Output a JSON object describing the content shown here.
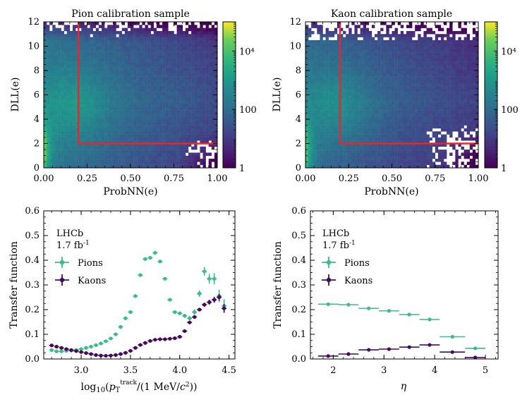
{
  "chart_data": [
    {
      "type": "heatmap",
      "id": "pion-2d",
      "title": "Pion calibration sample",
      "xlabel": "ProbNN(e)",
      "ylabel": "DLL(e)",
      "xlim": [
        0.0,
        1.0
      ],
      "ylim": [
        0,
        12
      ],
      "xticks": [
        0.0,
        0.25,
        0.5,
        0.75,
        1.0
      ],
      "xtick_labels": [
        "0.00",
        "0.25",
        "0.50",
        "0.75",
        "1.00"
      ],
      "yticks": [
        0,
        2,
        4,
        6,
        8,
        10,
        12
      ],
      "ytick_labels": [
        "0",
        "2",
        "4",
        "6",
        "8",
        "10",
        "12"
      ],
      "colorbar": {
        "scale": "log",
        "ticks": [
          1,
          100,
          10000
        ],
        "tick_labels": [
          "1",
          "100",
          "10⁴"
        ],
        "colormap": "viridis",
        "range": [
          1,
          100000
        ]
      },
      "selection_cut": {
        "probnn_e_min": 0.2,
        "dll_e_min": 2
      },
      "cut_color": "#e8262b"
    },
    {
      "type": "heatmap",
      "id": "kaon-2d",
      "title": "Kaon calibration sample",
      "xlabel": "ProbNN(e)",
      "ylabel": "DLL(e)",
      "xlim": [
        0.0,
        1.0
      ],
      "ylim": [
        0,
        12
      ],
      "xticks": [
        0.0,
        0.25,
        0.5,
        0.75,
        1.0
      ],
      "xtick_labels": [
        "0.00",
        "0.25",
        "0.50",
        "0.75",
        "1.00"
      ],
      "yticks": [
        0,
        2,
        4,
        6,
        8,
        10,
        12
      ],
      "ytick_labels": [
        "0",
        "2",
        "4",
        "6",
        "8",
        "10",
        "12"
      ],
      "colorbar": {
        "scale": "log",
        "ticks": [
          1,
          100,
          10000
        ],
        "tick_labels": [
          "1",
          "100",
          "10⁴"
        ],
        "colormap": "viridis",
        "range": [
          1,
          100000
        ]
      },
      "selection_cut": {
        "probnn_e_min": 0.2,
        "dll_e_min": 2
      },
      "cut_color": "#e8262b"
    },
    {
      "type": "scatter",
      "id": "tf-pt",
      "xlabel": "log₁₀(p_T^track/(1 MeV/c²))",
      "ylabel": "Transfer function",
      "xlim": [
        2.62,
        4.56
      ],
      "ylim": [
        0.0,
        0.6
      ],
      "xticks": [
        3.0,
        3.5,
        4.0,
        4.5
      ],
      "xtick_labels": [
        "3.0",
        "3.5",
        "4.0",
        "4.5"
      ],
      "yticks": [
        0.0,
        0.1,
        0.2,
        0.3,
        0.4,
        0.5,
        0.6
      ],
      "ytick_labels": [
        "0.0",
        "0.1",
        "0.2",
        "0.3",
        "0.4",
        "0.5",
        "0.6"
      ],
      "annotation": {
        "experiment": "LHCb",
        "lumi_value": "1.7 fb",
        "lumi_exp": "-1"
      },
      "legend_position": "upper-left",
      "series": [
        {
          "name": "Pions",
          "color": "#3dbc8a",
          "x": [
            2.7,
            2.75,
            2.8,
            2.85,
            2.9,
            2.95,
            3.0,
            3.05,
            3.1,
            3.15,
            3.2,
            3.25,
            3.3,
            3.35,
            3.4,
            3.45,
            3.5,
            3.55,
            3.6,
            3.65,
            3.7,
            3.75,
            3.8,
            3.85,
            3.9,
            3.95,
            4.0,
            4.05,
            4.1,
            4.15,
            4.2,
            4.25,
            4.3,
            4.35,
            4.4,
            4.45
          ],
          "y": [
            0.036,
            0.031,
            0.031,
            0.033,
            0.034,
            0.037,
            0.04,
            0.045,
            0.05,
            0.056,
            0.063,
            0.072,
            0.083,
            0.1,
            0.13,
            0.165,
            0.19,
            0.255,
            0.34,
            0.405,
            0.41,
            0.43,
            0.395,
            0.325,
            0.24,
            0.19,
            0.185,
            0.175,
            0.165,
            0.19,
            0.265,
            0.355,
            0.325,
            0.325,
            0.255,
            0.215
          ],
          "yerr": [
            0.003,
            0.002,
            0.002,
            0.002,
            0.002,
            0.002,
            0.002,
            0.002,
            0.002,
            0.002,
            0.002,
            0.002,
            0.003,
            0.003,
            0.003,
            0.004,
            0.004,
            0.004,
            0.005,
            0.005,
            0.006,
            0.006,
            0.006,
            0.006,
            0.006,
            0.006,
            0.007,
            0.008,
            0.009,
            0.011,
            0.013,
            0.017,
            0.02,
            0.023,
            0.025,
            0.028
          ]
        },
        {
          "name": "Kaons",
          "color": "#450a5b",
          "x": [
            2.7,
            2.75,
            2.8,
            2.85,
            2.9,
            2.95,
            3.0,
            3.05,
            3.1,
            3.15,
            3.2,
            3.25,
            3.3,
            3.35,
            3.4,
            3.45,
            3.5,
            3.55,
            3.6,
            3.65,
            3.7,
            3.75,
            3.8,
            3.85,
            3.9,
            3.95,
            4.0,
            4.05,
            4.1,
            4.15,
            4.2,
            4.25,
            4.3,
            4.35,
            4.4,
            4.45
          ],
          "y": [
            0.055,
            0.05,
            0.045,
            0.04,
            0.036,
            0.032,
            0.028,
            0.024,
            0.02,
            0.016,
            0.014,
            0.013,
            0.014,
            0.016,
            0.02,
            0.025,
            0.033,
            0.045,
            0.057,
            0.065,
            0.073,
            0.078,
            0.08,
            0.08,
            0.082,
            0.084,
            0.09,
            0.113,
            0.148,
            0.17,
            0.2,
            0.22,
            0.23,
            0.24,
            0.25,
            0.205
          ],
          "yerr": [
            0.003,
            0.002,
            0.002,
            0.002,
            0.002,
            0.002,
            0.002,
            0.002,
            0.002,
            0.002,
            0.001,
            0.001,
            0.001,
            0.001,
            0.002,
            0.002,
            0.002,
            0.002,
            0.002,
            0.002,
            0.002,
            0.002,
            0.002,
            0.002,
            0.002,
            0.002,
            0.003,
            0.003,
            0.004,
            0.005,
            0.006,
            0.008,
            0.01,
            0.012,
            0.014,
            0.018
          ]
        }
      ]
    },
    {
      "type": "scatter",
      "id": "tf-eta",
      "xlabel": "η",
      "ylabel": "Transfer function",
      "xlim": [
        1.55,
        5.25
      ],
      "ylim": [
        0.0,
        0.6
      ],
      "xticks": [
        2,
        3,
        4,
        5
      ],
      "xtick_labels": [
        "2",
        "3",
        "4",
        "5"
      ],
      "yticks": [
        0.0,
        0.1,
        0.2,
        0.3,
        0.4,
        0.5,
        0.6
      ],
      "ytick_labels": [
        "0.0",
        "0.1",
        "0.2",
        "0.3",
        "0.4",
        "0.5",
        "0.6"
      ],
      "annotation": {
        "experiment": "LHCb",
        "lumi_value": "1.7 fb",
        "lumi_exp": "-1"
      },
      "legend_position": "upper-left",
      "series": [
        {
          "name": "Pions",
          "color": "#3dbc8a",
          "x": [
            1.9,
            2.3,
            2.7,
            3.1,
            3.5,
            3.9,
            4.35,
            4.8
          ],
          "xerr": [
            0.2,
            0.2,
            0.2,
            0.2,
            0.2,
            0.2,
            0.25,
            0.2
          ],
          "y": [
            0.222,
            0.22,
            0.205,
            0.195,
            0.18,
            0.16,
            0.09,
            0.043
          ]
        },
        {
          "name": "Kaons",
          "color": "#450a5b",
          "x": [
            1.9,
            2.3,
            2.7,
            3.1,
            3.5,
            3.9,
            4.35,
            4.8
          ],
          "xerr": [
            0.2,
            0.2,
            0.2,
            0.2,
            0.2,
            0.2,
            0.25,
            0.2
          ],
          "y": [
            0.012,
            0.02,
            0.037,
            0.04,
            0.048,
            0.057,
            0.028,
            0.006
          ]
        }
      ]
    }
  ]
}
